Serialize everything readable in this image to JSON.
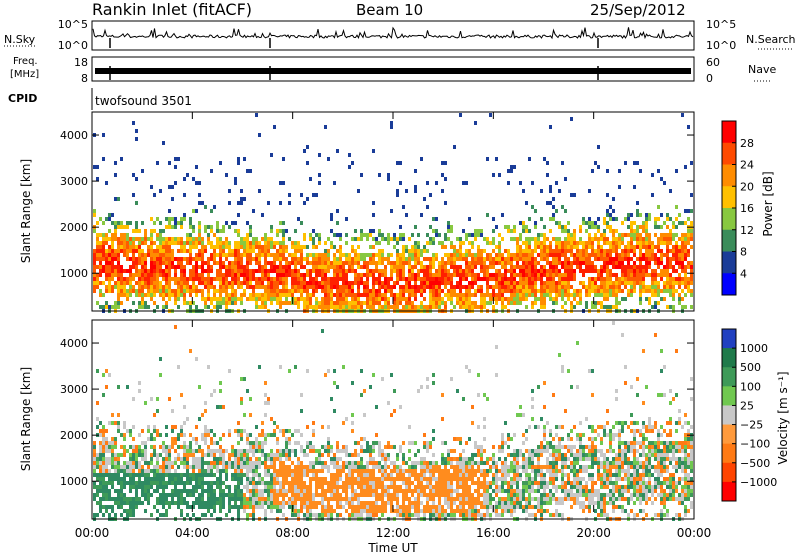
{
  "header": {
    "title": "Rankin Inlet (fitACF)",
    "beam": "Beam 10",
    "date": "25/Sep/2012"
  },
  "nsky_panel": {
    "label": "N.Sky",
    "left_ticks": [
      "10^5",
      "10^0"
    ],
    "right_label": "N.Search",
    "right_ticks": [
      "10^5",
      "10^0"
    ]
  },
  "freq_panel": {
    "label_line1": "Freq.",
    "label_line2": "[MHz]",
    "left_ticks": [
      "18",
      "8"
    ],
    "right_label": "Nave",
    "right_ticks": [
      "60",
      "0"
    ]
  },
  "cpid_panel": {
    "label": "CPID",
    "value": "twofsound 3501"
  },
  "chart_data": [
    {
      "type": "heatmap",
      "name": "power",
      "ylabel": "Slant Range [km]",
      "y_ticks": [
        "4000",
        "3000",
        "2000",
        "1000"
      ],
      "ylim": [
        180,
        4500
      ],
      "colorbar_label": "Power [dB]",
      "colorbar_ticks": [
        "28",
        "24",
        "20",
        "16",
        "12",
        "8",
        "4"
      ],
      "colorbar_colors": [
        "#ff0000",
        "#ff4a00",
        "#ff8c00",
        "#ffc000",
        "#88c840",
        "#3a8c5a",
        "#1a3c98",
        "#0000ff"
      ]
    },
    {
      "type": "heatmap",
      "name": "velocity",
      "ylabel": "Slant Range [km]",
      "y_ticks": [
        "4000",
        "3000",
        "2000",
        "1000"
      ],
      "ylim": [
        180,
        4500
      ],
      "colorbar_label": "Velocity [m s⁻¹]",
      "colorbar_ticks": [
        "1000",
        "500",
        "100",
        "25",
        "−25",
        "−100",
        "−500",
        "−1000"
      ],
      "colorbar_colors": [
        "#2040c0",
        "#1f7a4a",
        "#3e9a58",
        "#70c850",
        "#c8c8c8",
        "#ff9a3c",
        "#ff7a14",
        "#ff4400",
        "#ff0000"
      ]
    }
  ],
  "x_axis": {
    "ticks": [
      "00:00",
      "04:00",
      "08:00",
      "12:00",
      "16:00",
      "20:00",
      "00:00"
    ],
    "label": "Time UT"
  }
}
